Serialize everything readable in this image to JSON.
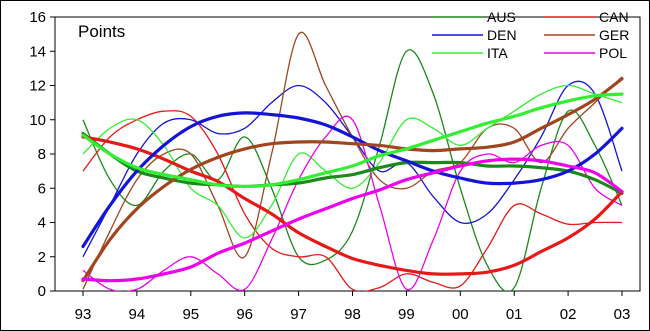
{
  "chart_data": {
    "type": "line",
    "title": "Points",
    "xlabel": "",
    "ylabel": "",
    "x_tick_labels": [
      "93",
      "94",
      "95",
      "96",
      "97",
      "98",
      "99",
      "00",
      "01",
      "02",
      "03"
    ],
    "y_ticks": [
      0,
      2,
      4,
      6,
      8,
      10,
      12,
      14,
      16
    ],
    "ylim": [
      0,
      16
    ],
    "grid": false,
    "legend_position": "top-right",
    "legend_order": [
      "AUS",
      "CAN",
      "DEN",
      "GER",
      "ITA",
      "POL"
    ],
    "series": [
      {
        "name": "AUS",
        "color": "#1a8a1a",
        "x": [
          93,
          93.5,
          94,
          94.5,
          95,
          95.5,
          96,
          96.5,
          97,
          97.5,
          98,
          98.5,
          99,
          99.5,
          100,
          100.5,
          101,
          101.5,
          102,
          102.5,
          103
        ],
        "values": [
          10,
          6.5,
          5,
          7,
          8,
          6.5,
          9,
          6,
          2,
          1.8,
          3.5,
          8.5,
          14,
          11.5,
          6,
          1.5,
          0.2,
          6,
          10.5,
          8.5,
          5
        ],
        "trend": [
          9.2,
          8,
          7,
          6.6,
          6.3,
          6.2,
          6.1,
          6.2,
          6.3,
          6.6,
          6.8,
          7.2,
          7.5,
          7.5,
          7.5,
          7.3,
          7.3,
          7.2,
          7,
          6.5,
          5.7
        ]
      },
      {
        "name": "CAN",
        "color": "#e61919",
        "x": [
          93,
          93.5,
          94,
          94.5,
          95,
          95.5,
          96,
          96.5,
          97,
          97.5,
          98,
          98.5,
          99,
          99.5,
          100,
          100.5,
          101,
          101.5,
          102,
          102.5,
          103
        ],
        "values": [
          7,
          9,
          10,
          10.5,
          10.2,
          8,
          4.5,
          2.5,
          2,
          2,
          0.1,
          0.2,
          1,
          0.5,
          0.3,
          2.5,
          5,
          4.5,
          3.9,
          4,
          4
        ],
        "trend": [
          9,
          8.7,
          8.3,
          7.7,
          7,
          6.4,
          5.4,
          4.5,
          3.4,
          2.6,
          1.9,
          1.5,
          1.2,
          1,
          1,
          1.1,
          1.5,
          2.3,
          3.1,
          4.2,
          5.8
        ]
      },
      {
        "name": "DEN",
        "color": "#1414d6",
        "x": [
          93,
          93.5,
          94,
          94.5,
          95,
          95.5,
          96,
          96.5,
          97,
          97.5,
          98,
          98.5,
          99,
          99.5,
          100,
          100.5,
          101,
          101.5,
          102,
          102.5,
          103
        ],
        "values": [
          2,
          5,
          8,
          9.8,
          10,
          9.2,
          9.5,
          11,
          12,
          11,
          9,
          7,
          7.5,
          5.5,
          4,
          4.5,
          6.5,
          9,
          12,
          11.5,
          7
        ],
        "trend": [
          2.6,
          5,
          7,
          8.5,
          9.6,
          10.2,
          10.4,
          10.3,
          10.1,
          9.7,
          9,
          8.2,
          7.6,
          7,
          6.6,
          6.3,
          6.3,
          6.5,
          7,
          8,
          9.5
        ]
      },
      {
        "name": "GER",
        "color": "#a0461e",
        "x": [
          93,
          93.5,
          94,
          94.5,
          95,
          95.5,
          96,
          96.5,
          97,
          97.5,
          98,
          98.5,
          99,
          99.5,
          100,
          100.5,
          101,
          101.5,
          102,
          102.5,
          103
        ],
        "values": [
          0.1,
          3.5,
          6.5,
          8,
          8,
          5,
          2,
          8,
          15,
          12,
          9,
          6.5,
          6,
          7,
          7.5,
          9.5,
          9.5,
          7.5,
          9.5,
          11,
          12.5
        ],
        "trend": [
          0.6,
          3,
          4.8,
          6.1,
          7.1,
          7.8,
          8.3,
          8.6,
          8.7,
          8.7,
          8.6,
          8.5,
          8.3,
          8.2,
          8.3,
          8.4,
          8.7,
          9.5,
          10.3,
          11.2,
          12.4
        ]
      },
      {
        "name": "ITA",
        "color": "#33ee33",
        "x": [
          93,
          93.5,
          94,
          94.5,
          95,
          95.5,
          96,
          96.5,
          97,
          97.5,
          98,
          98.5,
          99,
          99.5,
          100,
          100.5,
          101,
          101.5,
          102,
          102.5,
          103
        ],
        "values": [
          8,
          9.5,
          10,
          8.5,
          6,
          5,
          3.1,
          5,
          8,
          7,
          6,
          7.5,
          10,
          9.5,
          8.5,
          9.5,
          10.5,
          11.5,
          12,
          11.5,
          11
        ],
        "trend": [
          9.1,
          8,
          7.2,
          6.8,
          6.5,
          6.2,
          6.1,
          6.2,
          6.5,
          6.9,
          7.3,
          7.9,
          8.3,
          8.8,
          9.3,
          9.8,
          10.2,
          10.7,
          11.1,
          11.4,
          11.5
        ]
      },
      {
        "name": "POL",
        "color": "#ee00ee",
        "x": [
          93,
          93.5,
          94,
          94.5,
          95,
          95.5,
          96,
          96.5,
          97,
          97.5,
          98,
          98.5,
          99,
          99.5,
          100,
          100.5,
          101,
          101.5,
          102,
          102.5,
          103
        ],
        "values": [
          1.2,
          0.1,
          0.1,
          1.2,
          2,
          1,
          0.1,
          3,
          6.5,
          9,
          10,
          5,
          0.1,
          3,
          7,
          8,
          7.5,
          8.5,
          8.5,
          6,
          5
        ],
        "trend": [
          0.7,
          0.6,
          0.7,
          1,
          1.4,
          2.2,
          2.8,
          3.5,
          4.2,
          4.8,
          5.4,
          5.9,
          6.5,
          6.9,
          7.3,
          7.6,
          7.7,
          7.6,
          7.3,
          6.9,
          5.8
        ]
      }
    ]
  }
}
